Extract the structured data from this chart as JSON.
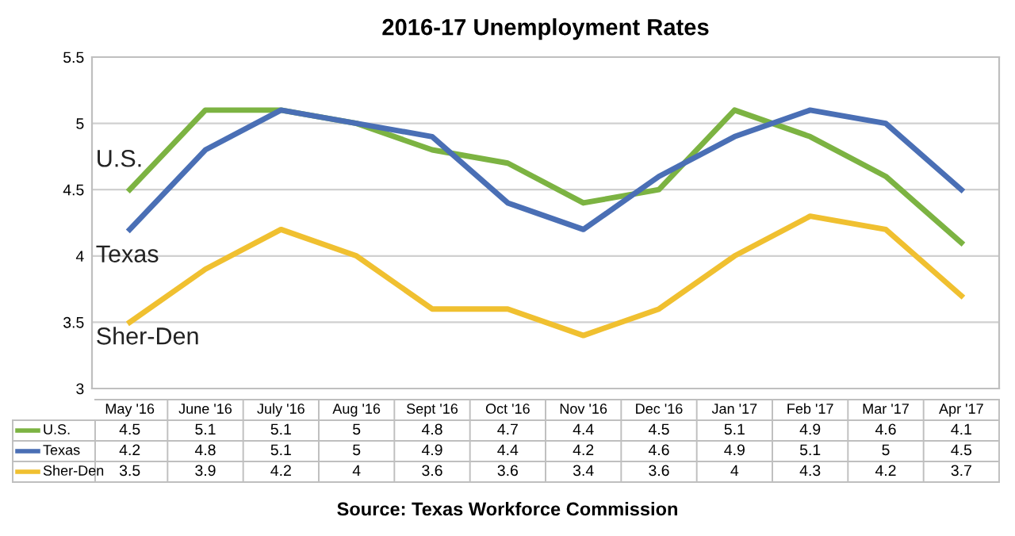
{
  "chart_data": {
    "type": "line",
    "title": "2016-17 Unemployment Rates",
    "categories": [
      "May '16",
      "June '16",
      "July '16",
      "Aug '16",
      "Sept '16",
      "Oct '16",
      "Nov '16",
      "Dec '16",
      "Jan '17",
      "Feb '17",
      "Mar '17",
      "Apr '17"
    ],
    "series": [
      {
        "name": "U.S.",
        "color": "#7cb342",
        "values": [
          4.5,
          5.1,
          5.1,
          5,
          4.8,
          4.7,
          4.4,
          4.5,
          5.1,
          4.9,
          4.6,
          4.1
        ]
      },
      {
        "name": "Texas",
        "color": "#4a6fb5",
        "values": [
          4.2,
          4.8,
          5.1,
          5,
          4.9,
          4.4,
          4.2,
          4.6,
          4.9,
          5.1,
          5,
          4.5
        ]
      },
      {
        "name": "Sher-Den",
        "color": "#f0c030",
        "values": [
          3.5,
          3.9,
          4.2,
          4,
          3.6,
          3.6,
          3.4,
          3.6,
          4,
          4.3,
          4.2,
          3.7
        ]
      }
    ],
    "ylim": [
      3,
      5.5
    ],
    "yticks": [
      3,
      3.5,
      4,
      4.5,
      5,
      5.5
    ],
    "grid": "y",
    "data_labels": true,
    "legend": "bottom",
    "marker": "none",
    "line_style": "solid",
    "annotations": [
      "Source: Texas Workforce Commission"
    ]
  }
}
